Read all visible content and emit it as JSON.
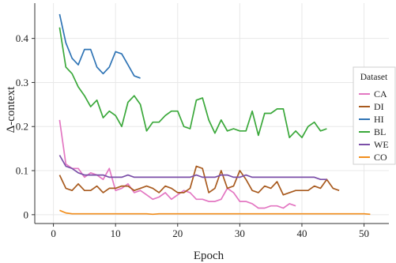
{
  "chart_data": {
    "type": "line",
    "title": "",
    "xlabel": "Epoch",
    "ylabel": "Δ-context",
    "xlim": [
      -3,
      54
    ],
    "ylim": [
      -0.02,
      0.48
    ],
    "xticks": [
      0,
      10,
      20,
      30,
      40,
      50
    ],
    "yticks": [
      0,
      0.1,
      0.2,
      0.3,
      0.4
    ],
    "ytick_labels": [
      "0",
      "0.1",
      "0.2",
      "0.3",
      "0.4"
    ],
    "grid": true,
    "legend": {
      "title": "Dataset",
      "position": "right"
    },
    "series": [
      {
        "name": "CA",
        "color": "#e377c2",
        "x": [
          1,
          2,
          3,
          4,
          5,
          6,
          7,
          8,
          9,
          10,
          11,
          12,
          13,
          14,
          15,
          16,
          17,
          18,
          19,
          20,
          21,
          22,
          23,
          24,
          25,
          26,
          27,
          28,
          29,
          30,
          31,
          32,
          33,
          34,
          35,
          36,
          37,
          38,
          39
        ],
        "y": [
          0.215,
          0.115,
          0.105,
          0.105,
          0.085,
          0.095,
          0.09,
          0.08,
          0.105,
          0.055,
          0.06,
          0.07,
          0.05,
          0.055,
          0.045,
          0.035,
          0.04,
          0.05,
          0.035,
          0.045,
          0.055,
          0.05,
          0.035,
          0.035,
          0.03,
          0.03,
          0.035,
          0.06,
          0.05,
          0.03,
          0.03,
          0.025,
          0.015,
          0.015,
          0.02,
          0.02,
          0.015,
          0.025,
          0.02
        ]
      },
      {
        "name": "DI",
        "color": "#a85a1e",
        "x": [
          1,
          2,
          3,
          4,
          5,
          6,
          7,
          8,
          9,
          10,
          11,
          12,
          13,
          14,
          15,
          16,
          17,
          18,
          19,
          20,
          21,
          22,
          23,
          24,
          25,
          26,
          27,
          28,
          29,
          30,
          31,
          32,
          33,
          34,
          35,
          36,
          37,
          38,
          39,
          40,
          41,
          42,
          43,
          44,
          45,
          46
        ],
        "y": [
          0.09,
          0.06,
          0.055,
          0.07,
          0.055,
          0.055,
          0.065,
          0.05,
          0.06,
          0.06,
          0.065,
          0.065,
          0.055,
          0.06,
          0.065,
          0.06,
          0.05,
          0.065,
          0.06,
          0.05,
          0.05,
          0.06,
          0.11,
          0.105,
          0.05,
          0.06,
          0.1,
          0.06,
          0.065,
          0.1,
          0.08,
          0.055,
          0.05,
          0.065,
          0.06,
          0.075,
          0.045,
          0.05,
          0.055,
          0.055,
          0.055,
          0.065,
          0.06,
          0.08,
          0.06,
          0.055
        ]
      },
      {
        "name": "HI",
        "color": "#2f74b5",
        "x": [
          1,
          2,
          3,
          4,
          5,
          6,
          7,
          8,
          9,
          10,
          11,
          12,
          13,
          14
        ],
        "y": [
          0.455,
          0.39,
          0.355,
          0.34,
          0.375,
          0.375,
          0.335,
          0.32,
          0.335,
          0.37,
          0.365,
          0.34,
          0.315,
          0.31
        ]
      },
      {
        "name": "BL",
        "color": "#3aa83a",
        "x": [
          1,
          2,
          3,
          4,
          5,
          6,
          7,
          8,
          9,
          10,
          11,
          12,
          13,
          14,
          15,
          16,
          17,
          18,
          19,
          20,
          21,
          22,
          23,
          24,
          25,
          26,
          27,
          28,
          29,
          30,
          31,
          32,
          33,
          34,
          35,
          36,
          37,
          38,
          39,
          40,
          41,
          42,
          43,
          44
        ],
        "y": [
          0.425,
          0.335,
          0.32,
          0.29,
          0.27,
          0.245,
          0.26,
          0.22,
          0.235,
          0.225,
          0.2,
          0.255,
          0.27,
          0.25,
          0.19,
          0.21,
          0.21,
          0.225,
          0.235,
          0.235,
          0.2,
          0.195,
          0.26,
          0.265,
          0.215,
          0.185,
          0.215,
          0.19,
          0.195,
          0.19,
          0.19,
          0.235,
          0.18,
          0.23,
          0.23,
          0.24,
          0.24,
          0.175,
          0.19,
          0.175,
          0.2,
          0.21,
          0.19,
          0.195
        ]
      },
      {
        "name": "WE",
        "color": "#7b4fa8",
        "x": [
          1,
          2,
          3,
          4,
          5,
          6,
          7,
          8,
          9,
          10,
          11,
          12,
          13,
          14,
          15,
          16,
          17,
          18,
          19,
          20,
          21,
          22,
          23,
          24,
          25,
          26,
          27,
          28,
          29,
          30,
          31,
          32,
          33,
          34,
          35,
          36,
          37,
          38,
          39,
          40,
          41,
          42,
          43,
          44
        ],
        "y": [
          0.135,
          0.11,
          0.105,
          0.095,
          0.09,
          0.09,
          0.09,
          0.09,
          0.085,
          0.085,
          0.085,
          0.09,
          0.085,
          0.085,
          0.085,
          0.085,
          0.085,
          0.085,
          0.085,
          0.085,
          0.085,
          0.085,
          0.09,
          0.085,
          0.085,
          0.085,
          0.09,
          0.09,
          0.085,
          0.085,
          0.09,
          0.085,
          0.085,
          0.085,
          0.085,
          0.085,
          0.085,
          0.085,
          0.085,
          0.085,
          0.085,
          0.085,
          0.08,
          0.08
        ]
      },
      {
        "name": "CO",
        "color": "#f28e1c",
        "x": [
          1,
          2,
          3,
          4,
          5,
          6,
          7,
          8,
          9,
          10,
          11,
          12,
          13,
          14,
          15,
          16,
          17,
          18,
          19,
          20,
          21,
          22,
          23,
          24,
          25,
          26,
          27,
          28,
          29,
          30,
          31,
          32,
          33,
          34,
          35,
          36,
          37,
          38,
          39,
          40,
          41,
          42,
          43,
          44,
          45,
          46,
          47,
          48,
          49,
          50,
          51
        ],
        "y": [
          0.01,
          0.004,
          0.002,
          0.002,
          0.002,
          0.002,
          0.002,
          0.002,
          0.002,
          0.002,
          0.002,
          0.002,
          0.002,
          0.002,
          0.002,
          0.001,
          0.002,
          0.002,
          0.002,
          0.002,
          0.002,
          0.002,
          0.002,
          0.002,
          0.002,
          0.002,
          0.002,
          0.002,
          0.002,
          0.002,
          0.002,
          0.002,
          0.002,
          0.002,
          0.002,
          0.002,
          0.002,
          0.002,
          0.002,
          0.002,
          0.002,
          0.002,
          0.002,
          0.002,
          0.002,
          0.002,
          0.002,
          0.002,
          0.002,
          0.002,
          0.001
        ]
      }
    ]
  }
}
